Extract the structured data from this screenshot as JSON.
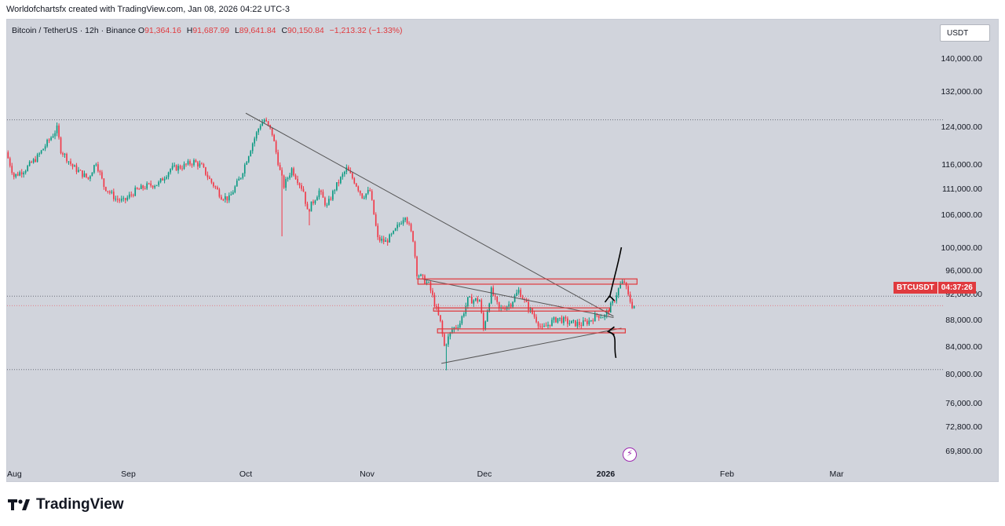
{
  "caption": "Worldofchartsfx created with TradingView.com, Jan 08, 2026 04:22 UTC-3",
  "legend": {
    "symbol": "Bitcoin / TetherUS · 12h · Binance",
    "o_label": "O",
    "o_value": "91,364.16",
    "h_label": "H",
    "h_value": "91,687.99",
    "l_label": "L",
    "l_value": "89,641.84",
    "c_label": "C",
    "c_value": "90,150.84",
    "change": "−1,213.32 (−1.33%)"
  },
  "currency": "USDT",
  "price_badge": {
    "ticker": "BTCUSDT",
    "countdown": "04:37:26"
  },
  "brand": "TradingView",
  "colors": {
    "up": "#089981",
    "down": "#f23645",
    "background": "#d1d4dc",
    "badge": "#e03a3e",
    "trendline": "#555555",
    "zone": "#e03a3e",
    "flash": "#9c27b0"
  },
  "icons": {
    "flash": "lightning-bolt-icon",
    "logo": "tradingview-logo-icon"
  },
  "chart_data": {
    "type": "candlestick",
    "title": "",
    "y_ticks": [
      "140,000.00",
      "132,000.00",
      "124,000.00",
      "116,000.00",
      "111,000.00",
      "106,000.00",
      "100,000.00",
      "96,000.00",
      "92,000.00",
      "88,000.00",
      "84,000.00",
      "80,000.00",
      "76,000.00",
      "72,800.00",
      "69,800.00"
    ],
    "y_tick_values": [
      140000,
      132000,
      124000,
      116000,
      111000,
      106000,
      100000,
      96000,
      92000,
      88000,
      84000,
      80000,
      76000,
      72800,
      69800
    ],
    "x_ticks": [
      "Aug",
      "Sep",
      "Oct",
      "Nov",
      "Dec",
      "2026",
      "Feb",
      "Mar"
    ],
    "x_tick_dates": [
      "2025-08-01",
      "2025-09-01",
      "2025-10-01",
      "2025-11-01",
      "2025-12-01",
      "2026-01-01",
      "2026-02-01",
      "2026-03-01"
    ],
    "date_range": [
      "2025-08-01",
      "2026-03-31"
    ],
    "last_price": 90150.84,
    "price_path": [
      [
        "2025-08-01",
        118500
      ],
      [
        "2025-08-03",
        113500
      ],
      [
        "2025-08-06",
        115000
      ],
      [
        "2025-08-09",
        117500
      ],
      [
        "2025-08-14",
        123500
      ],
      [
        "2025-08-15",
        119000
      ],
      [
        "2025-08-18",
        115500
      ],
      [
        "2025-08-22",
        113000
      ],
      [
        "2025-08-24",
        116500
      ],
      [
        "2025-08-26",
        111500
      ],
      [
        "2025-08-29",
        109000
      ],
      [
        "2025-08-31",
        108500
      ],
      [
        "2025-09-03",
        110500
      ],
      [
        "2025-09-06",
        111500
      ],
      [
        "2025-09-09",
        112000
      ],
      [
        "2025-09-12",
        115000
      ],
      [
        "2025-09-15",
        115500
      ],
      [
        "2025-09-18",
        116500
      ],
      [
        "2025-09-20",
        115500
      ],
      [
        "2025-09-22",
        112800
      ],
      [
        "2025-09-25",
        109500
      ],
      [
        "2025-09-27",
        109000
      ],
      [
        "2025-09-30",
        113500
      ],
      [
        "2025-10-03",
        120500
      ],
      [
        "2025-10-05",
        124500
      ],
      [
        "2025-10-06",
        125500
      ],
      [
        "2025-10-08",
        122500
      ],
      [
        "2025-10-10",
        114500
      ],
      [
        "2025-10-11",
        111500
      ],
      [
        "2025-10-13",
        115000
      ],
      [
        "2025-10-16",
        110500
      ],
      [
        "2025-10-17",
        106500
      ],
      [
        "2025-10-20",
        110500
      ],
      [
        "2025-10-22",
        107500
      ],
      [
        "2025-10-24",
        111000
      ],
      [
        "2025-10-27",
        115000
      ],
      [
        "2025-10-29",
        112500
      ],
      [
        "2025-10-31",
        109500
      ],
      [
        "2025-11-02",
        110500
      ],
      [
        "2025-11-04",
        101500
      ],
      [
        "2025-11-06",
        101000
      ],
      [
        "2025-11-08",
        102500
      ],
      [
        "2025-11-11",
        106000
      ],
      [
        "2025-11-13",
        101500
      ],
      [
        "2025-11-14",
        95500
      ],
      [
        "2025-11-17",
        93500
      ],
      [
        "2025-11-20",
        87500
      ],
      [
        "2025-11-21",
        84000
      ],
      [
        "2025-11-23",
        86500
      ],
      [
        "2025-11-25",
        87500
      ],
      [
        "2025-11-27",
        91000
      ],
      [
        "2025-11-30",
        91000
      ],
      [
        "2025-12-01",
        86500
      ],
      [
        "2025-12-03",
        92500
      ],
      [
        "2025-12-05",
        89500
      ],
      [
        "2025-12-08",
        90500
      ],
      [
        "2025-12-10",
        92500
      ],
      [
        "2025-12-12",
        90300
      ],
      [
        "2025-12-14",
        88500
      ],
      [
        "2025-12-16",
        86500
      ],
      [
        "2025-12-18",
        87500
      ],
      [
        "2025-12-20",
        88200
      ],
      [
        "2025-12-23",
        87500
      ],
      [
        "2025-12-26",
        87300
      ],
      [
        "2025-12-28",
        87800
      ],
      [
        "2025-12-30",
        88700
      ],
      [
        "2026-01-01",
        88500
      ],
      [
        "2026-01-03",
        90500
      ],
      [
        "2026-01-05",
        93500
      ],
      [
        "2026-01-06",
        94000
      ],
      [
        "2026-01-07",
        91600
      ],
      [
        "2026-01-08",
        90150
      ]
    ],
    "spikes": [
      [
        "2025-10-10",
        102000
      ],
      [
        "2025-11-21",
        80500
      ],
      [
        "2025-10-17",
        104000
      ]
    ],
    "horizontal_levels": [
      125500,
      91600,
      80600
    ],
    "trendlines": [
      [
        [
          "2025-10-01",
          127000
        ],
        [
          "2026-01-03",
          88500
        ]
      ],
      [
        [
          "2025-11-15",
          94500
        ],
        [
          "2026-01-03",
          88300
        ]
      ],
      [
        [
          "2025-11-20",
          81500
        ],
        [
          "2026-01-05",
          86700
        ]
      ]
    ],
    "zones": [
      [
        [
          "2025-11-14",
          94500
        ],
        [
          "2026-01-09",
          93600
        ]
      ],
      [
        [
          "2025-11-18",
          89800
        ],
        [
          "2026-01-02",
          89300
        ]
      ],
      [
        [
          "2025-11-19",
          86600
        ],
        [
          "2026-01-06",
          86000
        ]
      ]
    ],
    "annotation_arrows": [
      [
        [
          "2026-01-02",
          91400
        ],
        [
          "2026-01-05",
          100000
        ]
      ],
      [
        [
          "2026-01-02",
          86200
        ],
        [
          "2026-01-03",
          82300
        ]
      ]
    ]
  }
}
